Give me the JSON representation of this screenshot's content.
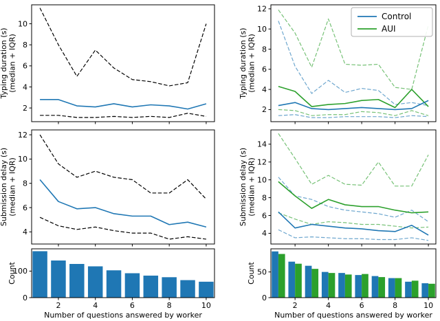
{
  "figure": {
    "background": "#ffffff",
    "xlabel": "Number of questions answered by worker",
    "colors": {
      "control": "#1f77b4",
      "aui": "#2ca02c",
      "iqr_black": "#000000"
    }
  },
  "chart_data": [
    {
      "id": "typing-left",
      "type": "line",
      "ylabel": [
        "Typing duration (s)",
        "(median + IQR)"
      ],
      "xlabel": "",
      "x": [
        1,
        2,
        3,
        4,
        5,
        6,
        7,
        8,
        9,
        10
      ],
      "xlim": [
        0.55,
        10.45
      ],
      "ylim": [
        0.7,
        11.8
      ],
      "xticks": [
        2,
        4,
        6,
        8,
        10
      ],
      "yticks": [
        2,
        4,
        6,
        8,
        10
      ],
      "xtick_labels": false,
      "series": [
        {
          "name": "IQR upper",
          "color": "#000000",
          "style": "dashed",
          "values": [
            11.5,
            8.0,
            5.0,
            7.5,
            5.8,
            4.7,
            4.5,
            4.1,
            4.4,
            10.0
          ]
        },
        {
          "name": "Median",
          "color": "#1f77b4",
          "style": "solid",
          "values": [
            2.8,
            2.8,
            2.2,
            2.1,
            2.4,
            2.1,
            2.3,
            2.2,
            1.9,
            2.4
          ]
        },
        {
          "name": "IQR lower",
          "color": "#000000",
          "style": "dashed",
          "values": [
            1.3,
            1.3,
            1.1,
            1.1,
            1.2,
            1.1,
            1.2,
            1.1,
            1.5,
            1.2
          ]
        }
      ]
    },
    {
      "id": "typing-right",
      "type": "line",
      "ylabel": [
        "Typing duration (s)",
        "(median + IQR)"
      ],
      "xlabel": "",
      "x": [
        1,
        2,
        3,
        4,
        5,
        6,
        7,
        8,
        9,
        10
      ],
      "xlim": [
        0.55,
        10.45
      ],
      "ylim": [
        0.8,
        12.4
      ],
      "xticks": [
        2,
        4,
        6,
        8,
        10
      ],
      "yticks": [
        2,
        4,
        6,
        8,
        10,
        12
      ],
      "xtick_labels": false,
      "legend": {
        "position": "top-right",
        "entries": [
          {
            "label": "Control",
            "color": "#1f77b4"
          },
          {
            "label": "AUI",
            "color": "#2ca02c"
          }
        ]
      },
      "series": [
        {
          "name": "AUI IQR upper",
          "color": "#2ca02c",
          "style": "dashed",
          "values": [
            11.9,
            9.6,
            6.2,
            11.0,
            6.5,
            6.4,
            6.5,
            4.2,
            4.0,
            10.4
          ]
        },
        {
          "name": "Control IQR upper",
          "color": "#1f77b4",
          "style": "dashed",
          "values": [
            10.8,
            6.3,
            3.6,
            4.9,
            3.7,
            4.1,
            3.9,
            2.5,
            2.7,
            2.4
          ]
        },
        {
          "name": "AUI IQR lower",
          "color": "#2ca02c",
          "style": "dashed",
          "values": [
            2.0,
            1.9,
            1.4,
            1.5,
            1.5,
            1.8,
            1.7,
            1.4,
            1.9,
            1.4
          ]
        },
        {
          "name": "Control IQR lower",
          "color": "#1f77b4",
          "style": "dashed",
          "values": [
            1.4,
            1.5,
            1.2,
            1.2,
            1.3,
            1.3,
            1.3,
            1.2,
            1.4,
            1.3
          ]
        },
        {
          "name": "AUI median",
          "color": "#2ca02c",
          "style": "solid",
          "values": [
            4.3,
            3.8,
            2.3,
            2.5,
            2.6,
            2.9,
            3.0,
            2.2,
            4.0,
            2.3
          ]
        },
        {
          "name": "Control median",
          "color": "#1f77b4",
          "style": "solid",
          "values": [
            2.4,
            2.7,
            2.1,
            2.0,
            2.1,
            2.2,
            2.1,
            2.0,
            2.1,
            2.9
          ]
        }
      ]
    },
    {
      "id": "delay-left",
      "type": "line",
      "ylabel": [
        "Submission delay (s)",
        "(median + IQR)"
      ],
      "xlabel": "",
      "x": [
        1,
        2,
        3,
        4,
        5,
        6,
        7,
        8,
        9,
        10
      ],
      "xlim": [
        0.55,
        10.45
      ],
      "ylim": [
        3.0,
        12.4
      ],
      "xticks": [
        2,
        4,
        6,
        8,
        10
      ],
      "yticks": [
        4,
        6,
        8,
        10,
        12
      ],
      "xtick_labels": false,
      "series": [
        {
          "name": "IQR upper",
          "color": "#000000",
          "style": "dashed",
          "values": [
            12.0,
            9.6,
            8.5,
            9.0,
            8.5,
            8.3,
            7.2,
            7.2,
            8.3,
            6.7
          ]
        },
        {
          "name": "Median",
          "color": "#1f77b4",
          "style": "solid",
          "values": [
            8.3,
            6.5,
            5.9,
            6.0,
            5.5,
            5.3,
            5.3,
            4.6,
            4.8,
            4.4
          ]
        },
        {
          "name": "IQR lower",
          "color": "#000000",
          "style": "dashed",
          "values": [
            5.2,
            4.5,
            4.2,
            4.4,
            4.1,
            3.9,
            3.9,
            3.4,
            3.6,
            3.4
          ]
        }
      ]
    },
    {
      "id": "delay-right",
      "type": "line",
      "ylabel": [
        "Submission delay (s)",
        "(median + IQR)"
      ],
      "xlabel": "",
      "x": [
        1,
        2,
        3,
        4,
        5,
        6,
        7,
        8,
        9,
        10
      ],
      "xlim": [
        0.55,
        10.45
      ],
      "ylim": [
        2.8,
        15.6
      ],
      "xticks": [
        2,
        4,
        6,
        8,
        10
      ],
      "yticks": [
        4,
        6,
        8,
        10,
        12,
        14
      ],
      "xtick_labels": false,
      "series": [
        {
          "name": "AUI IQR upper",
          "color": "#2ca02c",
          "style": "dashed",
          "values": [
            15.2,
            12.4,
            9.5,
            10.5,
            9.5,
            9.4,
            12.0,
            9.3,
            9.3,
            12.8
          ]
        },
        {
          "name": "Control IQR upper",
          "color": "#1f77b4",
          "style": "dashed",
          "values": [
            10.3,
            8.2,
            7.8,
            7.0,
            6.6,
            6.4,
            6.2,
            5.8,
            6.6,
            5.3
          ]
        },
        {
          "name": "AUI IQR lower",
          "color": "#2ca02c",
          "style": "dashed",
          "values": [
            6.3,
            5.6,
            5.0,
            5.3,
            5.2,
            5.0,
            5.0,
            4.8,
            4.6,
            4.7
          ]
        },
        {
          "name": "Control IQR lower",
          "color": "#1f77b4",
          "style": "dashed",
          "values": [
            4.4,
            3.5,
            3.6,
            3.5,
            3.4,
            3.4,
            3.3,
            3.3,
            3.5,
            3.2
          ]
        },
        {
          "name": "AUI median",
          "color": "#2ca02c",
          "style": "solid",
          "values": [
            9.8,
            8.2,
            6.8,
            7.8,
            7.2,
            7.0,
            7.0,
            6.6,
            6.3,
            6.4
          ]
        },
        {
          "name": "Control median",
          "color": "#1f77b4",
          "style": "solid",
          "values": [
            6.4,
            4.6,
            5.0,
            4.8,
            4.6,
            4.5,
            4.3,
            4.2,
            4.9,
            3.8
          ]
        }
      ]
    },
    {
      "id": "count-left",
      "type": "bar",
      "ylabel": [
        "Count"
      ],
      "xlabel": "Number of questions answered by worker",
      "x": [
        1,
        2,
        3,
        4,
        5,
        6,
        7,
        8,
        9,
        10
      ],
      "xlim": [
        0.55,
        10.45
      ],
      "ylim": [
        0,
        184
      ],
      "xticks": [
        2,
        4,
        6,
        8,
        10
      ],
      "yticks": [
        0,
        100
      ],
      "xtick_labels": true,
      "series": [
        {
          "name": "Count",
          "color": "#1f77b4",
          "style": "bar",
          "values": [
            175,
            140,
            127,
            118,
            103,
            92,
            83,
            77,
            66,
            60
          ]
        }
      ]
    },
    {
      "id": "count-right",
      "type": "bar",
      "ylabel": [
        "Count"
      ],
      "xlabel": "Number of questions answered by worker",
      "x": [
        1,
        2,
        3,
        4,
        5,
        6,
        7,
        8,
        9,
        10
      ],
      "xlim": [
        0.55,
        10.45
      ],
      "ylim": [
        0,
        95
      ],
      "xticks": [
        2,
        4,
        6,
        8,
        10
      ],
      "yticks": [
        0,
        50
      ],
      "xtick_labels": true,
      "series": [
        {
          "name": "Control",
          "color": "#1f77b4",
          "style": "bar",
          "values": [
            90,
            70,
            62,
            50,
            48,
            44,
            42,
            38,
            31,
            28
          ]
        },
        {
          "name": "AUI",
          "color": "#2ca02c",
          "style": "bar",
          "values": [
            85,
            66,
            56,
            48,
            45,
            46,
            40,
            38,
            33,
            27
          ]
        }
      ]
    }
  ]
}
